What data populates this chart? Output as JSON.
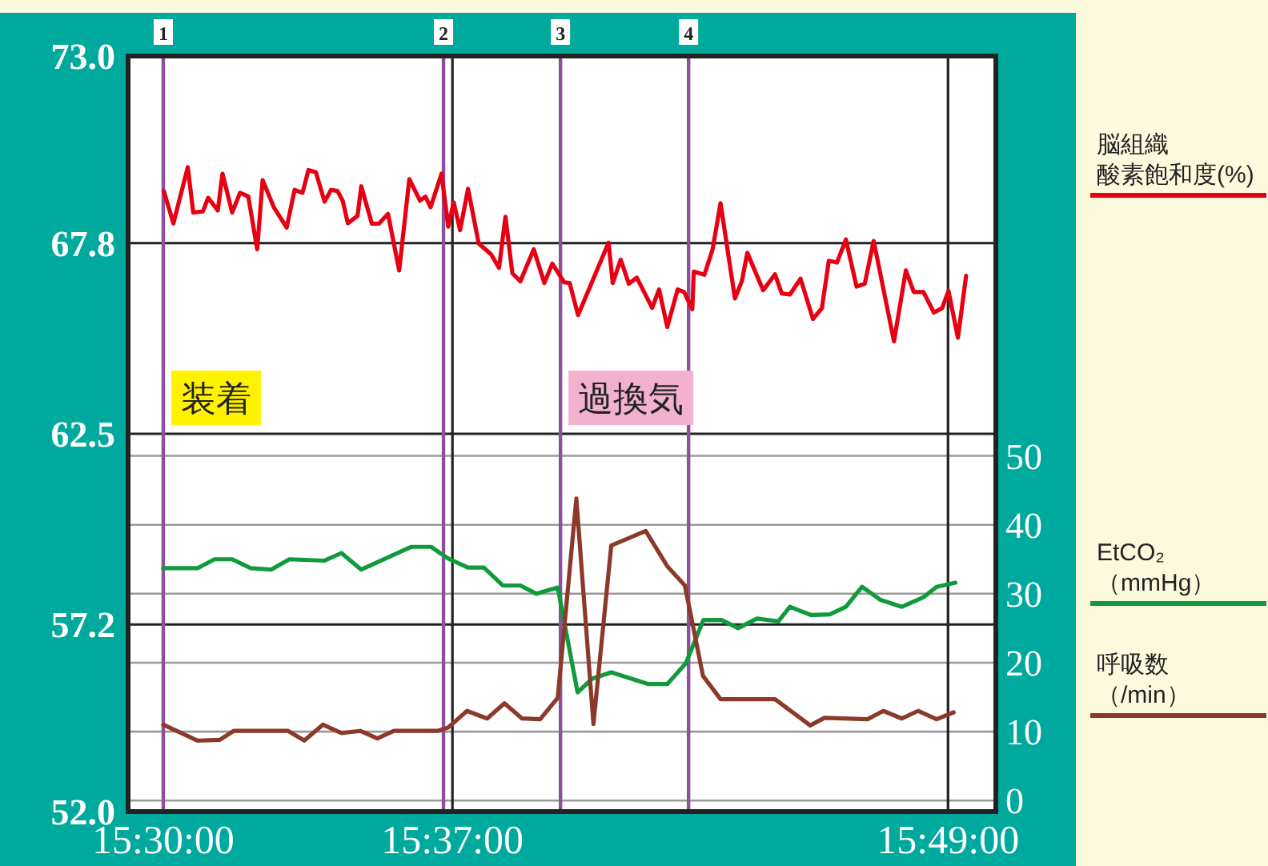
{
  "chart_data": {
    "type": "line",
    "xlim": [
      15.4858,
      15.836
    ],
    "ylim": [
      52,
      73
    ],
    "y2lim": [
      -1.6,
      108
    ],
    "xticks": [
      {
        "value": 15.5,
        "label": "15:30:00"
      },
      {
        "value": 15.6167,
        "label": "15:37:00"
      },
      {
        "value": 15.8167,
        "label": "15:49:00"
      }
    ],
    "yticks": [
      {
        "value": 52,
        "label": "52.0"
      },
      {
        "value": 57.2,
        "label": "57.2"
      },
      {
        "value": 62.5,
        "label": "62.5"
      },
      {
        "value": 67.8,
        "label": "67.8"
      },
      {
        "value": 73,
        "label": "73.0"
      }
    ],
    "y2ticks": [
      0,
      10,
      20,
      30,
      40,
      50
    ],
    "grid": true,
    "legend": "right",
    "series": [
      {
        "name": "脳組織酸素飽和度(%)",
        "color": "#e60012",
        "x": [
          15.5002,
          15.5041,
          15.5099,
          15.5121,
          15.516,
          15.5181,
          15.522,
          15.5239,
          15.5278,
          15.531,
          15.5343,
          15.5379,
          15.5401,
          15.5446,
          15.5498,
          15.553,
          15.5562,
          15.5586,
          15.5616,
          15.5651,
          15.5677,
          15.5703,
          15.5724,
          15.5745,
          15.5784,
          15.5799,
          15.5842,
          15.587,
          15.5907,
          15.5952,
          15.5993,
          15.6036,
          15.6058,
          15.6079,
          15.6123,
          15.615,
          15.6172,
          15.6198,
          15.623,
          15.6273,
          15.6323,
          15.6355,
          15.6381,
          15.6409,
          15.6441,
          15.6495,
          15.6538,
          15.657,
          15.6618,
          15.664,
          15.6674,
          15.6797,
          15.6814,
          15.6846,
          15.6879,
          15.6911,
          15.6973,
          15.7001,
          15.7034,
          15.7076,
          15.7102,
          15.7135,
          15.7141,
          15.7184,
          15.7217,
          15.7249,
          15.7307,
          15.7335,
          15.7357,
          15.7421,
          15.7469,
          15.7496,
          15.7529,
          15.7572,
          15.7622,
          15.7658,
          15.7686,
          15.7719,
          15.7755,
          15.7798,
          15.7831,
          15.7867,
          15.7949,
          15.7997,
          15.8029,
          15.8068,
          15.811,
          15.8143,
          15.8169,
          15.8207,
          15.824
        ],
        "values": [
          69.25,
          68.35,
          69.91,
          68.65,
          68.68,
          69.06,
          68.71,
          69.73,
          68.65,
          69.2,
          69.1,
          67.63,
          69.55,
          68.8,
          68.23,
          69.28,
          69.2,
          69.83,
          69.77,
          68.95,
          69.28,
          69.25,
          68.98,
          68.35,
          68.56,
          69.38,
          68.34,
          68.34,
          68.61,
          67.04,
          69.58,
          68.98,
          69.09,
          68.8,
          69.73,
          68.26,
          68.93,
          68.16,
          69.31,
          67.79,
          67.49,
          67.11,
          68.53,
          66.96,
          66.74,
          67.63,
          66.69,
          67.23,
          66.71,
          66.69,
          65.8,
          67.81,
          66.69,
          67.34,
          66.67,
          66.84,
          66.0,
          66.51,
          65.47,
          66.51,
          66.44,
          65.96,
          67.01,
          66.92,
          67.63,
          68.91,
          66.26,
          66.74,
          67.53,
          66.49,
          66.93,
          66.4,
          66.37,
          66.81,
          65.69,
          65.99,
          67.31,
          67.26,
          67.9,
          66.59,
          66.67,
          67.86,
          65.07,
          67.04,
          66.44,
          66.44,
          65.87,
          65.99,
          66.47,
          65.17,
          66.89
        ]
      },
      {
        "name": "EtCO₂（mmHg）",
        "color": "#109a3c",
        "axis": "y2",
        "x": [
          15.5,
          15.5138,
          15.5207,
          15.5278,
          15.5353,
          15.5435,
          15.5509,
          15.5651,
          15.5719,
          15.5799,
          15.6,
          15.6081,
          15.615,
          15.623,
          15.6294,
          15.637,
          15.6441,
          15.6506,
          15.6592,
          15.6672,
          15.6732,
          15.6808,
          15.6958,
          15.7034,
          15.7109,
          15.718,
          15.7253,
          15.732,
          15.7396,
          15.7482,
          15.7529,
          15.7615,
          15.769,
          15.7755,
          15.782,
          15.7895,
          15.7981,
          15.8068,
          15.8121,
          15.8197
        ],
        "values": [
          33.7,
          33.7,
          35.0,
          35.0,
          33.7,
          33.5,
          35.0,
          34.8,
          35.9,
          33.5,
          36.8,
          36.8,
          35.1,
          33.8,
          33.8,
          31.2,
          31.2,
          30.0,
          30.9,
          15.7,
          17.7,
          18.6,
          16.9,
          16.9,
          19.9,
          26.2,
          26.2,
          25.0,
          26.4,
          26.0,
          28.1,
          26.9,
          27.0,
          28.1,
          31.0,
          29.1,
          28.1,
          29.5,
          31.0,
          31.6
        ]
      },
      {
        "name": "呼吸数（/min）",
        "color": "#8b3a2a",
        "axis": "y2",
        "x": [
          15.5,
          15.5138,
          15.5228,
          15.5284,
          15.5504,
          15.5569,
          15.5644,
          15.5719,
          15.5795,
          15.5864,
          15.5931,
          15.6107,
          15.615,
          15.6226,
          15.6307,
          15.6377,
          15.6448,
          15.6521,
          15.6592,
          15.6667,
          15.6736,
          15.6808,
          15.6947,
          15.7034,
          15.7105,
          15.7178,
          15.7249,
          15.7469,
          15.7611,
          15.7669,
          15.7842,
          15.7906,
          15.7981,
          15.8046,
          15.8121,
          15.819
        ],
        "values": [
          11.0,
          8.7,
          8.8,
          10.1,
          10.1,
          8.7,
          11.0,
          9.8,
          10.1,
          9.0,
          10.1,
          10.1,
          10.6,
          13.0,
          11.9,
          14.1,
          11.9,
          11.8,
          14.9,
          43.8,
          11.1,
          37.0,
          39.1,
          34.0,
          31.2,
          18.1,
          14.7,
          14.7,
          10.9,
          12.0,
          11.8,
          13.0,
          11.9,
          13.0,
          11.8,
          12.8
        ]
      }
    ],
    "ref_lines": [
      {
        "axis": "x",
        "value": 15.5,
        "color": "#8e4fa0"
      },
      {
        "axis": "x",
        "value": 15.6131,
        "color": "#8e4fa0"
      },
      {
        "axis": "x",
        "value": 15.6603,
        "color": "#8e4fa0"
      },
      {
        "axis": "x",
        "value": 15.712,
        "color": "#8e4fa0"
      }
    ],
    "annotations": [
      "1",
      "2",
      "3",
      "4",
      {
        "text": "装着",
        "x": 15.5,
        "y": 63.5
      },
      {
        "text": "過換気",
        "x": 15.6603,
        "y": 63.5
      }
    ]
  }
}
